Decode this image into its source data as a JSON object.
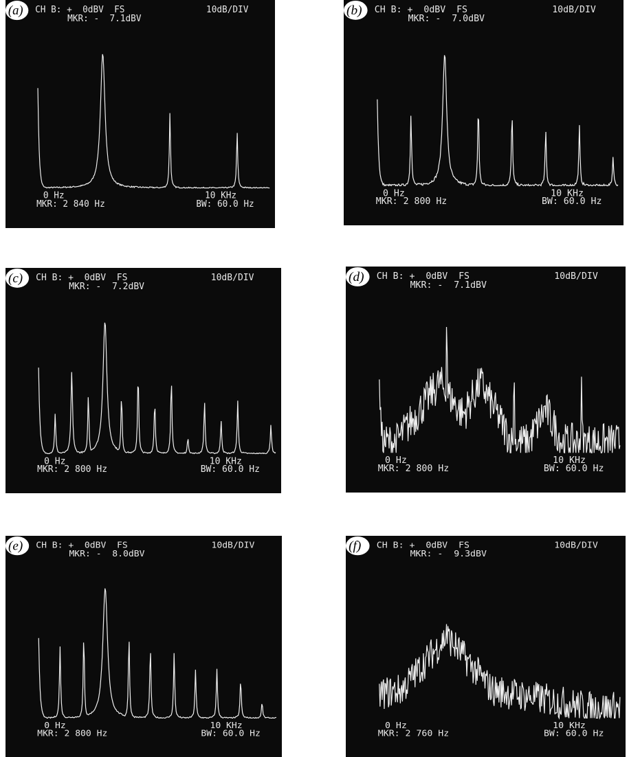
{
  "panels": [
    {
      "label": "(a)",
      "channel": "CH B: +  0dBV  FS",
      "scale": "10dB/DIV",
      "marker_level": "MKR: -  7.1dBV",
      "start": "0 Hz",
      "stop": "10 KHz",
      "marker_freq": "MKR: 2 840 Hz",
      "bandwidth": "BW: 60.0 Hz"
    },
    {
      "label": "(b)",
      "channel": "CH B: +  0dBV  FS",
      "scale": "10dB/DIV",
      "marker_level": "MKR: -  7.0dBV",
      "start": "0 Hz",
      "stop": "10 KHz",
      "marker_freq": "MKR: 2 800 Hz",
      "bandwidth": "BW: 60.0 Hz"
    },
    {
      "label": "(c)",
      "channel": "CH B: +  0dBV  FS",
      "scale": "10dB/DIV",
      "marker_level": "MKR: -  7.2dBV",
      "start": "0 Hz",
      "stop": "10 KHz",
      "marker_freq": "MKR: 2 800 Hz",
      "bandwidth": "BW: 60.0 Hz"
    },
    {
      "label": "(d)",
      "channel": "CH B: +  0dBV  FS",
      "scale": "10dB/DIV",
      "marker_level": "MKR: -  7.1dBV",
      "start": "0 Hz",
      "stop": "10 KHz",
      "marker_freq": "MKR: 2 800 Hz",
      "bandwidth": "BW: 60.0 Hz"
    },
    {
      "label": "(e)",
      "channel": "CH B: +  0dBV  FS",
      "scale": "10dB/DIV",
      "marker_level": "MKR: -  8.0dBV",
      "start": "0 Hz",
      "stop": "10 KHz",
      "marker_freq": "MKR: 2 800 Hz",
      "bandwidth": "BW: 60.0 Hz"
    },
    {
      "label": "(f)",
      "channel": "CH B: +  0dBV  FS",
      "scale": "10dB/DIV",
      "marker_level": "MKR: -  9.3dBV",
      "start": "0 Hz",
      "stop": "10 KHz",
      "marker_freq": "MKR: 2 760 Hz",
      "bandwidth": "BW: 60.0 Hz"
    }
  ]
}
